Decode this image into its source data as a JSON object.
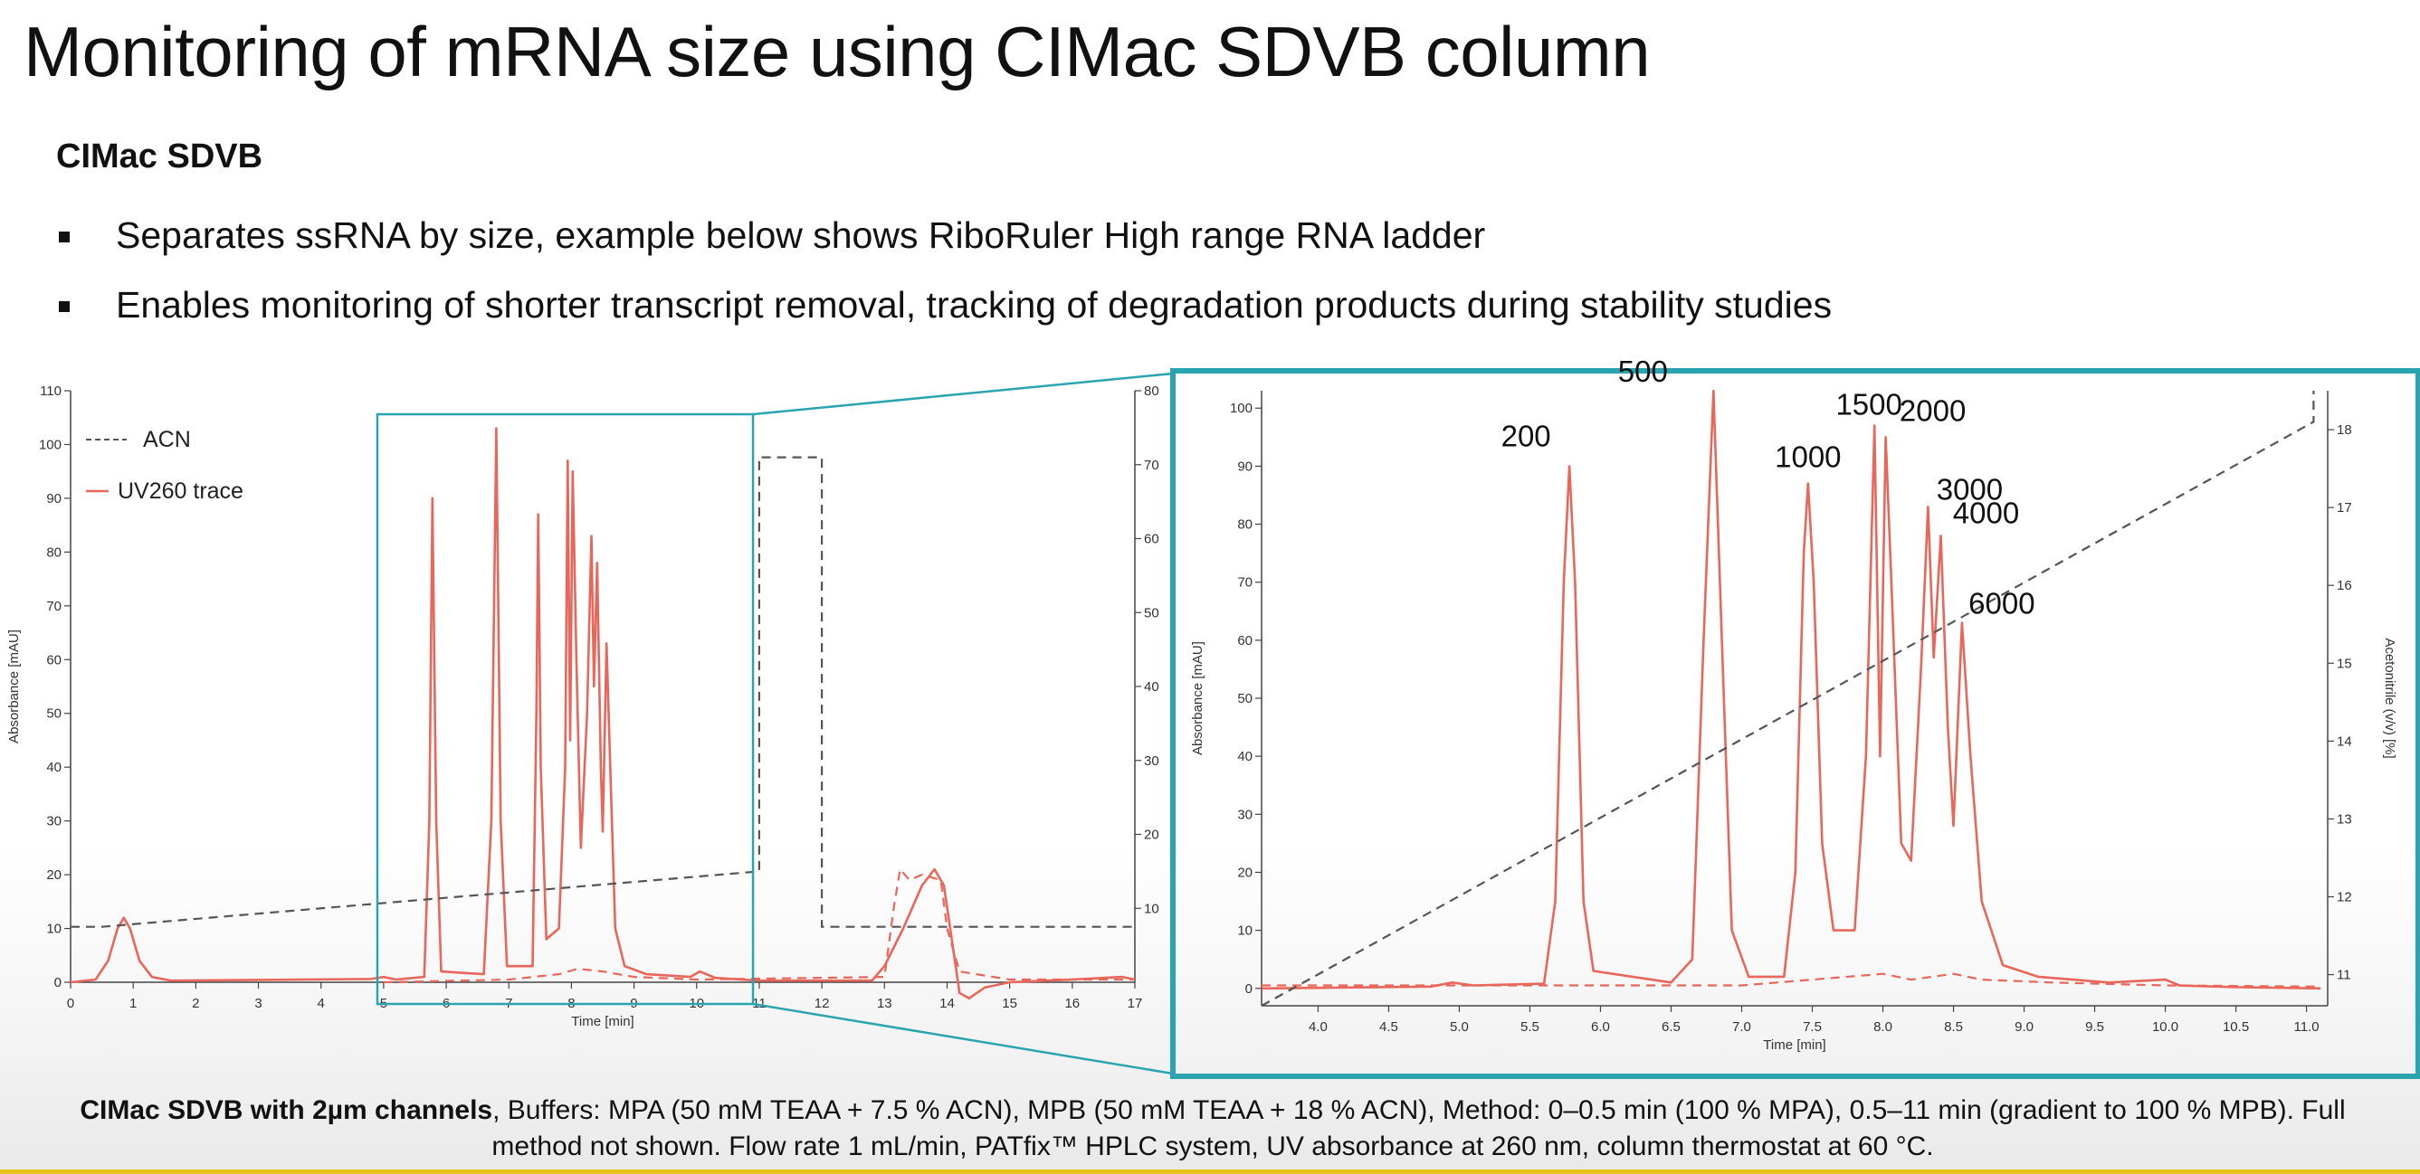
{
  "slide": {
    "title": "Monitoring of mRNA size using CIMac SDVB column",
    "subheading": "CIMac SDVB",
    "bullets": [
      "Separates ssRNA by size, example below shows RiboRuler High range RNA ladder",
      "Enables monitoring of shorter transcript removal, tracking of degradation products during stability studies"
    ],
    "caption_bold": "CIMac SDVB with 2µm channels",
    "caption_text": ", Buffers: MPA (50 mM TEAA + 7.5 % ACN), MPB (50 mM TEAA + 18 % ACN), Method: 0–0.5 min (100 % MPA), 0.5–11 min (gradient to 100 % MPB). Full method not shown. Flow rate 1 mL/min, PATfix™ HPLC system, UV absorbance at 260 nm, column thermostat at 60 °C.",
    "colors": {
      "uv_trace": "#e8665a",
      "acn_line": "#555555",
      "highlight_box": "#2aa5b0",
      "accent_line": "#e6c619"
    }
  },
  "chart_data": [
    {
      "type": "line",
      "xlabel": "Time [min]",
      "ylabel": "Absorbance [mAU]",
      "y2label": "",
      "xlim": [
        0,
        17
      ],
      "ylim": [
        0,
        110
      ],
      "y2lim": [
        0,
        80
      ],
      "xticks": [
        0,
        1,
        2,
        3,
        4,
        5,
        6,
        7,
        8,
        9,
        10,
        11,
        12,
        13,
        14,
        15,
        16,
        17
      ],
      "yticks": [
        0,
        10,
        20,
        30,
        40,
        50,
        60,
        70,
        80,
        90,
        100,
        110
      ],
      "y2ticks": [
        10,
        20,
        30,
        40,
        50,
        60,
        70,
        80
      ],
      "legend": [
        "ACN",
        "UV260 trace"
      ],
      "legend_position": "top-left",
      "highlight_region_x": [
        4.9,
        10.9
      ],
      "series": [
        {
          "name": "UV260 trace",
          "points": [
            [
              0,
              0
            ],
            [
              0.4,
              0.5
            ],
            [
              0.6,
              4
            ],
            [
              0.75,
              10
            ],
            [
              0.85,
              12
            ],
            [
              0.95,
              10
            ],
            [
              1.1,
              4
            ],
            [
              1.3,
              1
            ],
            [
              1.6,
              0.3
            ],
            [
              4.8,
              0.6
            ],
            [
              5.0,
              1
            ],
            [
              5.2,
              0.5
            ],
            [
              5.65,
              1
            ],
            [
              5.73,
              30
            ],
            [
              5.78,
              90
            ],
            [
              5.84,
              30
            ],
            [
              5.92,
              2
            ],
            [
              6.6,
              1.5
            ],
            [
              6.72,
              30
            ],
            [
              6.8,
              103
            ],
            [
              6.87,
              30
            ],
            [
              6.97,
              3
            ],
            [
              7.38,
              3
            ],
            [
              7.44,
              50
            ],
            [
              7.47,
              87
            ],
            [
              7.51,
              40
            ],
            [
              7.6,
              8
            ],
            [
              7.8,
              10
            ],
            [
              7.9,
              40
            ],
            [
              7.94,
              97
            ],
            [
              7.98,
              45
            ],
            [
              8.02,
              95
            ],
            [
              8.08,
              60
            ],
            [
              8.15,
              25
            ],
            [
              8.25,
              50
            ],
            [
              8.32,
              83
            ],
            [
              8.36,
              55
            ],
            [
              8.41,
              78
            ],
            [
              8.47,
              40
            ],
            [
              8.5,
              28
            ],
            [
              8.56,
              63
            ],
            [
              8.62,
              40
            ],
            [
              8.7,
              10
            ],
            [
              8.85,
              3
            ],
            [
              9.2,
              1.5
            ],
            [
              9.9,
              1
            ],
            [
              10.05,
              2
            ],
            [
              10.3,
              0.8
            ],
            [
              11,
              0.3
            ],
            [
              12.8,
              0.3
            ],
            [
              13.0,
              3
            ],
            [
              13.3,
              10
            ],
            [
              13.6,
              18
            ],
            [
              13.8,
              21
            ],
            [
              13.95,
              18
            ],
            [
              14.05,
              10
            ],
            [
              14.2,
              -2
            ],
            [
              14.35,
              -3
            ],
            [
              14.6,
              -1
            ],
            [
              15,
              0
            ],
            [
              16,
              0.5
            ],
            [
              16.8,
              1
            ],
            [
              17,
              0.5
            ]
          ]
        },
        {
          "name": "UV260 trace (dashed overlay)",
          "points": [
            [
              5,
              0
            ],
            [
              7,
              0.5
            ],
            [
              7.8,
              1.5
            ],
            [
              8.1,
              2.5
            ],
            [
              8.5,
              2
            ],
            [
              9,
              1
            ],
            [
              10,
              0.5
            ],
            [
              13.0,
              1
            ],
            [
              13.15,
              14
            ],
            [
              13.25,
              21
            ],
            [
              13.4,
              19
            ],
            [
              13.6,
              20
            ],
            [
              13.9,
              19
            ],
            [
              14.0,
              10
            ],
            [
              14.2,
              2
            ],
            [
              15,
              0.5
            ],
            [
              17,
              0.5
            ]
          ]
        },
        {
          "name": "ACN",
          "points_y2": [
            [
              0,
              7.5
            ],
            [
              0.5,
              7.5
            ],
            [
              11,
              15
            ],
            [
              11,
              71
            ],
            [
              12,
              71
            ],
            [
              12,
              7.5
            ],
            [
              17,
              7.5
            ]
          ]
        }
      ]
    },
    {
      "type": "line",
      "xlabel": "Time [min]",
      "ylabel": "Absorbance [mAU]",
      "y2label": "Acetonitrile (v/v) [%]",
      "xlim": [
        3.6,
        11.15
      ],
      "ylim": [
        -3,
        103
      ],
      "y2lim": [
        10.6,
        18.5
      ],
      "xticks": [
        "4.0",
        "4.5",
        "5.0",
        "5.5",
        "6.0",
        "6.5",
        "7.0",
        "7.5",
        "8.0",
        "8.5",
        "9.0",
        "9.5",
        "10.0",
        "10.5",
        "11.0"
      ],
      "yticks": [
        0,
        10,
        20,
        30,
        40,
        50,
        60,
        70,
        80,
        90,
        100
      ],
      "y2ticks": [
        11,
        12,
        13,
        14,
        15,
        16,
        17,
        18
      ],
      "annotations": [
        {
          "label": "200",
          "x": 5.78,
          "y": 90
        },
        {
          "label": "500",
          "x": 6.8,
          "y": 103
        },
        {
          "label": "1000",
          "x": 7.47,
          "y": 87
        },
        {
          "label": "1500",
          "x": 7.94,
          "y": 97
        },
        {
          "label": "2000",
          "x": 8.02,
          "y": 95
        },
        {
          "label": "3000",
          "x": 8.32,
          "y": 83
        },
        {
          "label": "4000",
          "x": 8.41,
          "y": 78
        },
        {
          "label": "6000",
          "x": 8.56,
          "y": 63
        }
      ],
      "series": [
        {
          "name": "UV260 trace",
          "points": [
            [
              3.6,
              0
            ],
            [
              4.8,
              0.3
            ],
            [
              4.95,
              1
            ],
            [
              5.1,
              0.5
            ],
            [
              5.6,
              0.8
            ],
            [
              5.68,
              15
            ],
            [
              5.74,
              70
            ],
            [
              5.78,
              90
            ],
            [
              5.82,
              70
            ],
            [
              5.88,
              15
            ],
            [
              5.95,
              3
            ],
            [
              6.5,
              1
            ],
            [
              6.65,
              5
            ],
            [
              6.73,
              60
            ],
            [
              6.8,
              103
            ],
            [
              6.86,
              60
            ],
            [
              6.93,
              10
            ],
            [
              7.05,
              2
            ],
            [
              7.3,
              2
            ],
            [
              7.38,
              20
            ],
            [
              7.44,
              75
            ],
            [
              7.47,
              87
            ],
            [
              7.51,
              70
            ],
            [
              7.57,
              25
            ],
            [
              7.65,
              10
            ],
            [
              7.8,
              10
            ],
            [
              7.88,
              40
            ],
            [
              7.94,
              97
            ],
            [
              7.98,
              40
            ],
            [
              8.02,
              95
            ],
            [
              8.06,
              70
            ],
            [
              8.13,
              25
            ],
            [
              8.2,
              22
            ],
            [
              8.27,
              55
            ],
            [
              8.32,
              83
            ],
            [
              8.36,
              57
            ],
            [
              8.41,
              78
            ],
            [
              8.46,
              45
            ],
            [
              8.5,
              28
            ],
            [
              8.56,
              63
            ],
            [
              8.62,
              40
            ],
            [
              8.7,
              15
            ],
            [
              8.85,
              4
            ],
            [
              9.1,
              2
            ],
            [
              9.6,
              1
            ],
            [
              10.0,
              1.5
            ],
            [
              10.1,
              0.5
            ],
            [
              10.5,
              0.2
            ],
            [
              11.1,
              0
            ]
          ]
        },
        {
          "name": "UV260 trace (dashed overlay)",
          "points": [
            [
              3.6,
              0.5
            ],
            [
              7.0,
              0.5
            ],
            [
              7.5,
              1.5
            ],
            [
              8.0,
              2.5
            ],
            [
              8.2,
              1.5
            ],
            [
              8.5,
              2.5
            ],
            [
              8.7,
              1.5
            ],
            [
              9.2,
              1
            ],
            [
              10,
              0.5
            ],
            [
              11.1,
              0.3
            ]
          ]
        },
        {
          "name": "ACN",
          "points_y2": [
            [
              3.6,
              10.6
            ],
            [
              11.05,
              18.1
            ],
            [
              11.05,
              18.5
            ]
          ]
        }
      ]
    }
  ]
}
